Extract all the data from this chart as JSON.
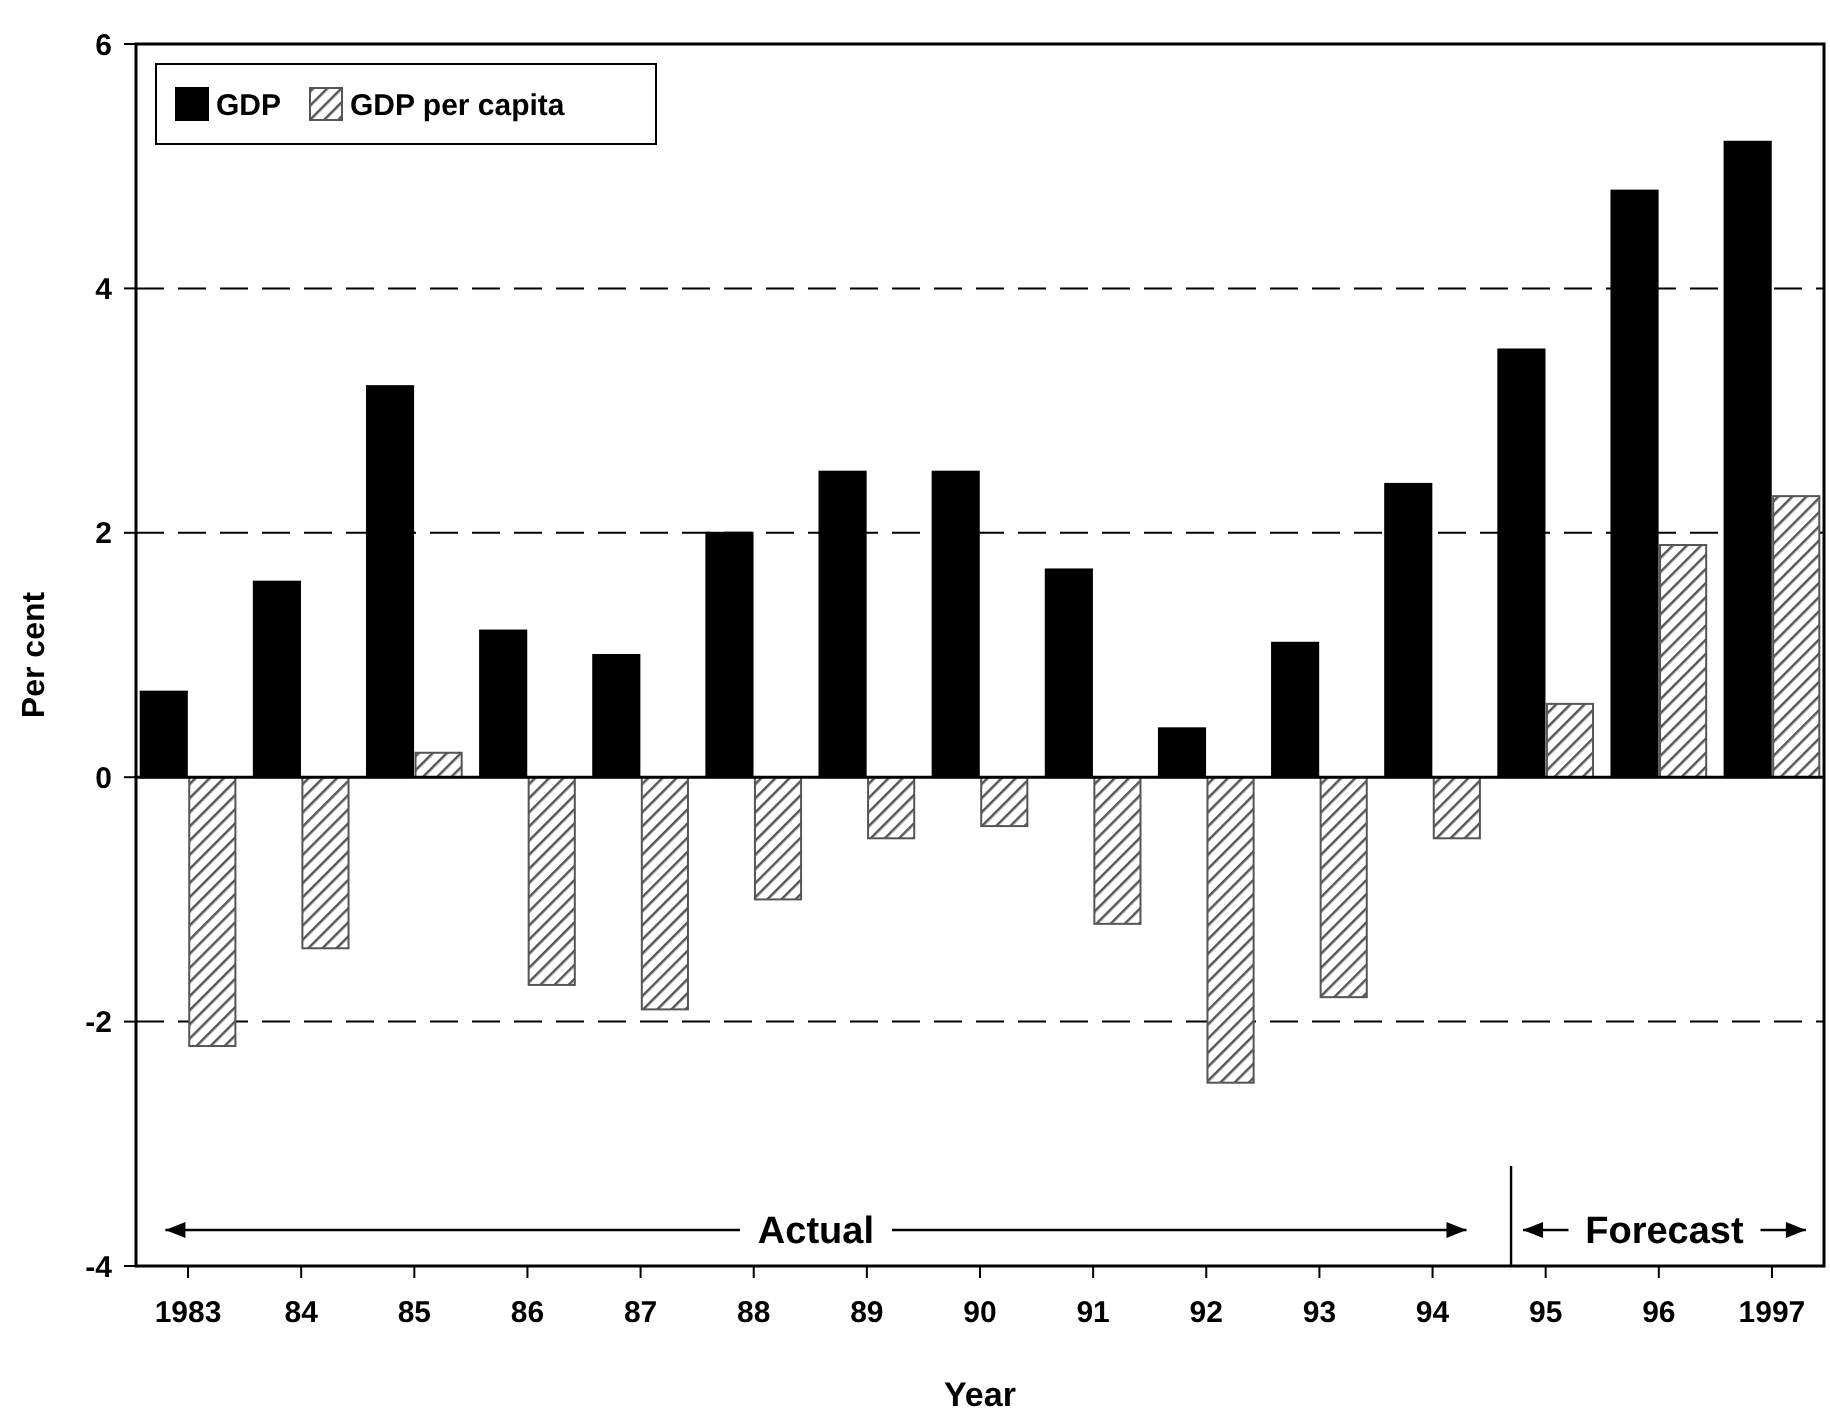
{
  "chart_data": {
    "type": "bar",
    "xlabel": "Year",
    "ylabel": "Per cent",
    "categories": [
      "1983",
      "84",
      "85",
      "86",
      "87",
      "88",
      "89",
      "90",
      "91",
      "92",
      "93",
      "94",
      "95",
      "96",
      "1997"
    ],
    "series": [
      {
        "name": "GDP",
        "color": "#000000",
        "values": [
          0.7,
          1.6,
          3.2,
          1.2,
          1.0,
          2.0,
          2.5,
          2.5,
          1.7,
          0.4,
          1.1,
          2.4,
          3.5,
          4.8,
          5.2
        ]
      },
      {
        "name": "GDP per capita",
        "color": "#555555",
        "values": [
          -2.2,
          -1.4,
          0.2,
          -1.7,
          -1.9,
          -1.0,
          -0.5,
          -0.4,
          -1.2,
          -2.5,
          -1.8,
          -0.5,
          0.6,
          1.9,
          2.3
        ]
      }
    ],
    "ylim": [
      -4,
      6
    ],
    "yticks": [
      -4,
      -2,
      0,
      2,
      4,
      6
    ],
    "grid": "y",
    "legend": "top left",
    "annotations": [
      "Actual",
      "Forecast"
    ]
  }
}
